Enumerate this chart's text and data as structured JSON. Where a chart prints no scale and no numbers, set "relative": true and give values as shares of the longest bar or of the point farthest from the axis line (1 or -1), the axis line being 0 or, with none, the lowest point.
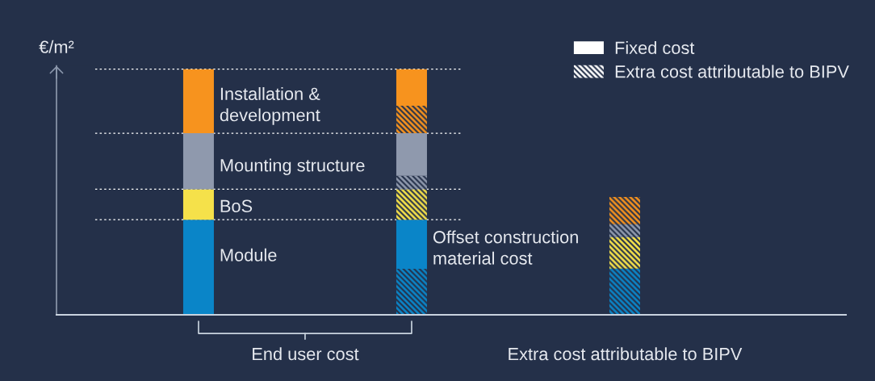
{
  "chart_data": {
    "type": "bar",
    "stacked": true,
    "relative": true,
    "ylabel": "€/m²",
    "categories": [
      null,
      "End user cost",
      null,
      null,
      "Extra cost attributable to BIPV"
    ],
    "series": [
      {
        "color": "#0a85c8",
        "values": [
          null,
          null,
          0.187,
          null,
          0.188
        ]
      },
      {
        "name": "Module",
        "color": "#0a85c8",
        "values": [
          0.387,
          null,
          null,
          null,
          null
        ]
      },
      {
        "name": "Offset construction\nmaterial cost",
        "color": "#0a85c8",
        "values": [
          null,
          null,
          0.2,
          null,
          null
        ]
      },
      {
        "color": "#f5e14a",
        "values": [
          null,
          null,
          0.124,
          null,
          0.128
        ]
      },
      {
        "name": "BoS",
        "color": "#f5e14a",
        "values": [
          0.124,
          null,
          null,
          null,
          null
        ]
      },
      {
        "color": "#8f99ad",
        "values": [
          null,
          null,
          0.055,
          null,
          0.053
        ]
      },
      {
        "name": "Mounting structure",
        "color": "#8f99ad",
        "values": [
          0.228,
          null,
          0.173,
          null,
          null
        ]
      },
      {
        "color": "#f7931e",
        "values": [
          null,
          null,
          0.112,
          null,
          0.111
        ]
      },
      {
        "name": "Installation &\ndevelopment",
        "color": "#f7931e",
        "values": [
          0.261,
          null,
          0.149,
          null,
          null
        ]
      }
    ],
    "ref_lines": [
      {
        "axis": "y",
        "value": 0.387,
        "line_style": "dotted",
        "color": "#ffffff"
      },
      {
        "axis": "y",
        "value": 0.511,
        "line_style": "dotted",
        "color": "#ffffff"
      },
      {
        "axis": "y",
        "value": 0.739,
        "line_style": "dotted",
        "color": "#ffffff"
      },
      {
        "axis": "y",
        "value": 1.0,
        "line_style": "dotted",
        "color": "#ffffff"
      }
    ],
    "annotations": [
      "Fixed cost",
      "Extra cost attributable to BIPV"
    ],
    "legend": "top right"
  }
}
